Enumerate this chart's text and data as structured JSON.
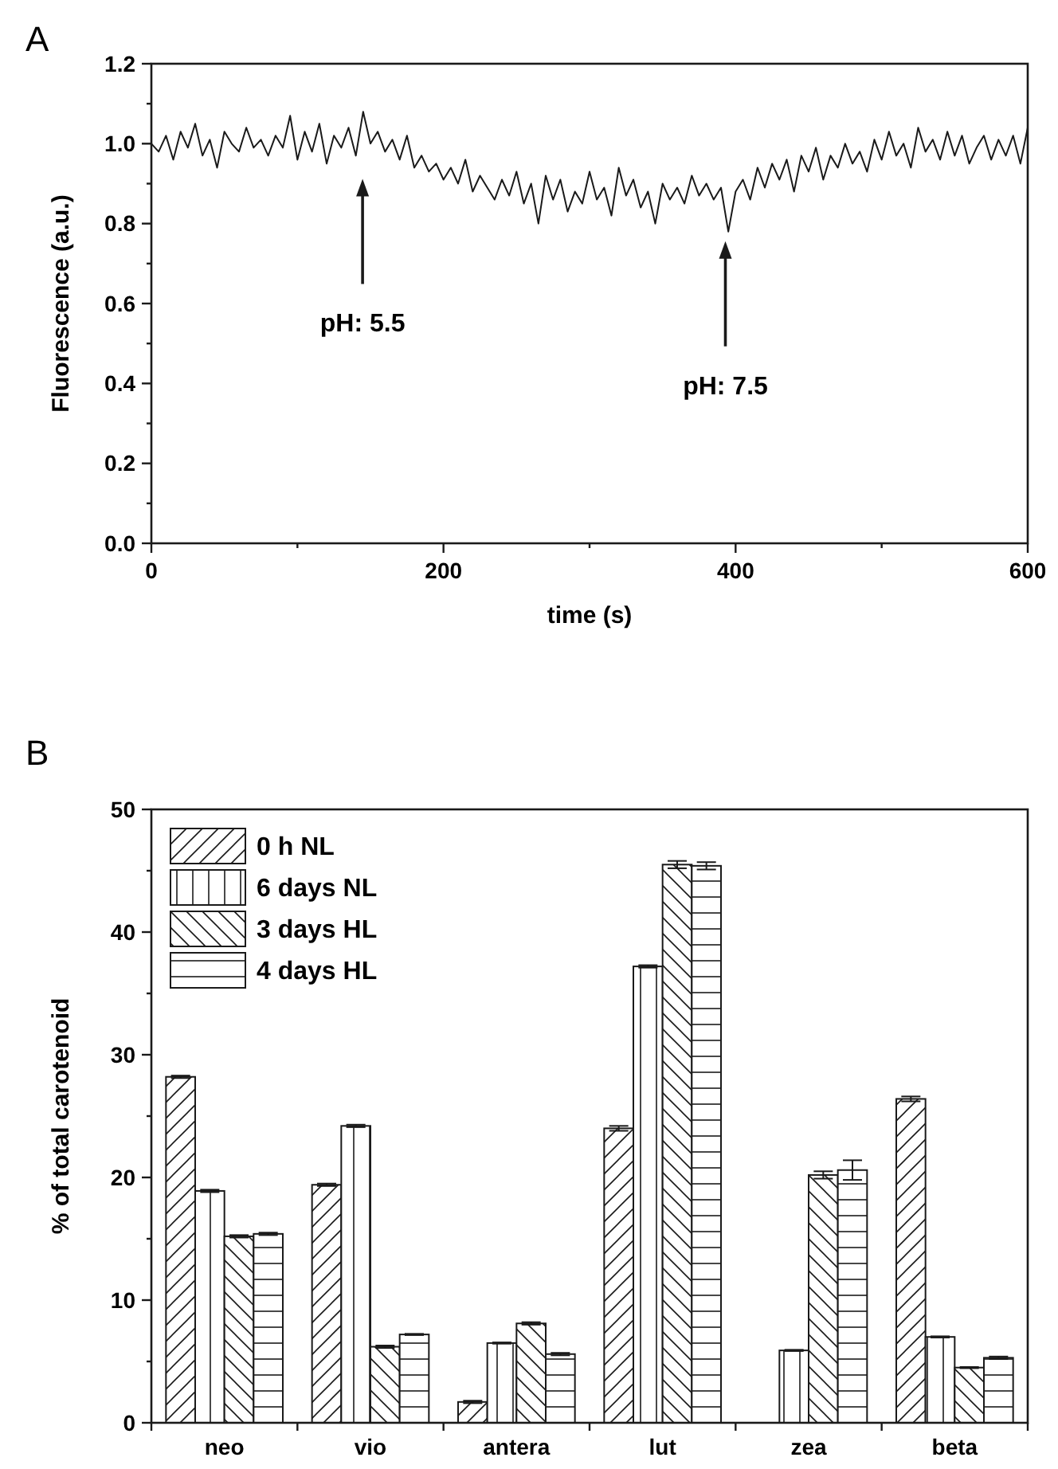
{
  "chart_data": [
    {
      "type": "line",
      "title": "A",
      "xlabel": "time (s)",
      "ylabel": "Fluorescence (a.u.)",
      "xlim": [
        0,
        600
      ],
      "ylim": [
        0,
        1.2
      ],
      "xticks": [
        0,
        {
          "value": 100,
          "label": null
        },
        200,
        {
          "value": 300,
          "label": null
        },
        400,
        {
          "value": 500,
          "label": null
        },
        600
      ],
      "yticks": [
        "0.0",
        {
          "value": 0.1,
          "label": null
        },
        {
          "value": 0.2,
          "label": "0.2"
        },
        {
          "value": 0.3,
          "label": null
        },
        {
          "value": 0.4,
          "label": "0.4"
        },
        {
          "value": 0.5,
          "label": null
        },
        {
          "value": 0.6,
          "label": "0.6"
        },
        {
          "value": 0.7,
          "label": null
        },
        {
          "value": 0.8,
          "label": "0.8"
        },
        {
          "value": 0.9,
          "label": null
        },
        {
          "value": 1.0,
          "label": "1.0"
        },
        {
          "value": 1.1,
          "label": null
        },
        {
          "value": 1.2,
          "label": "1.2"
        }
      ],
      "annotations": [
        "pH: 5.5",
        "pH: 7.5"
      ],
      "x": [
        0,
        5,
        10,
        15,
        20,
        25,
        30,
        35,
        40,
        45,
        50,
        55,
        60,
        65,
        70,
        75,
        80,
        85,
        90,
        95,
        100,
        105,
        110,
        115,
        120,
        125,
        130,
        135,
        140,
        145,
        150,
        155,
        160,
        165,
        170,
        175,
        180,
        185,
        190,
        195,
        200,
        205,
        210,
        215,
        220,
        225,
        230,
        235,
        240,
        245,
        250,
        255,
        260,
        265,
        270,
        275,
        280,
        285,
        290,
        295,
        300,
        305,
        310,
        315,
        320,
        325,
        330,
        335,
        340,
        345,
        350,
        355,
        360,
        365,
        370,
        375,
        380,
        385,
        390,
        395,
        400,
        405,
        410,
        415,
        420,
        425,
        430,
        435,
        440,
        445,
        450,
        455,
        460,
        465,
        470,
        475,
        480,
        485,
        490,
        495,
        500,
        505,
        510,
        515,
        520,
        525,
        530,
        535,
        540,
        545,
        550,
        555,
        560,
        565,
        570,
        575,
        580,
        585,
        590,
        595,
        600
      ],
      "series": [
        {
          "color": "#1a1a1a",
          "values": [
            1.0,
            0.98,
            1.02,
            0.96,
            1.03,
            0.99,
            1.05,
            0.97,
            1.01,
            0.94,
            1.03,
            1.0,
            0.98,
            1.04,
            0.99,
            1.01,
            0.97,
            1.02,
            0.99,
            1.07,
            0.96,
            1.03,
            0.98,
            1.05,
            0.95,
            1.02,
            0.99,
            1.04,
            0.97,
            1.08,
            1.0,
            1.03,
            0.98,
            1.01,
            0.96,
            1.02,
            0.94,
            0.97,
            0.93,
            0.95,
            0.91,
            0.94,
            0.9,
            0.96,
            0.88,
            0.92,
            0.89,
            0.86,
            0.91,
            0.87,
            0.93,
            0.85,
            0.9,
            0.8,
            0.92,
            0.86,
            0.91,
            0.83,
            0.88,
            0.85,
            0.93,
            0.86,
            0.89,
            0.82,
            0.94,
            0.87,
            0.91,
            0.84,
            0.88,
            0.8,
            0.9,
            0.86,
            0.89,
            0.85,
            0.92,
            0.87,
            0.9,
            0.86,
            0.89,
            0.78,
            0.88,
            0.91,
            0.86,
            0.94,
            0.89,
            0.95,
            0.91,
            0.96,
            0.88,
            0.97,
            0.93,
            0.99,
            0.91,
            0.97,
            0.94,
            1.0,
            0.95,
            0.98,
            0.93,
            1.01,
            0.96,
            1.03,
            0.97,
            1.0,
            0.94,
            1.04,
            0.98,
            1.01,
            0.96,
            1.03,
            0.97,
            1.02,
            0.95,
            0.99,
            1.02,
            0.96,
            1.01,
            0.97,
            1.02,
            0.95,
            1.04
          ]
        }
      ]
    },
    {
      "type": "bar",
      "title": "B",
      "ylabel": "% of total carotenoid",
      "legend": "top left",
      "categories": [
        "neo",
        "vio",
        "antera",
        "lut",
        "zea",
        "beta"
      ],
      "ylim": [
        0,
        50
      ],
      "yticks": [
        0,
        {
          "value": 5,
          "label": null
        },
        10,
        {
          "value": 15,
          "label": null
        },
        20,
        {
          "value": 25,
          "label": null
        },
        30,
        {
          "value": 35,
          "label": null
        },
        40,
        {
          "value": 45,
          "label": null
        },
        50
      ],
      "series": [
        {
          "name": "0 h NL",
          "color": "#1a1a1a",
          "values": [
            28.2,
            19.4,
            1.7,
            24.0,
            null,
            26.4
          ],
          "errors": [
            0.1,
            0.1,
            0.1,
            0.2,
            null,
            0.2
          ]
        },
        {
          "name": "6 days NL",
          "color": "#1a1a1a",
          "values": [
            18.9,
            24.2,
            6.5,
            37.2,
            5.9,
            7.0
          ],
          "errors": [
            0.1,
            0.1,
            0.05,
            0.1,
            0.05,
            0.05
          ]
        },
        {
          "name": "3 days HL",
          "color": "#1a1a1a",
          "values": [
            15.2,
            6.2,
            8.1,
            45.5,
            20.2,
            4.5
          ],
          "errors": [
            0.1,
            0.1,
            0.1,
            0.3,
            0.3,
            0.05
          ]
        },
        {
          "name": "4 days HL",
          "color": "#1a1a1a",
          "values": [
            15.4,
            7.2,
            5.6,
            45.4,
            20.6,
            5.3
          ],
          "errors": [
            0.1,
            0.05,
            0.1,
            0.3,
            0.8,
            0.1
          ]
        }
      ]
    }
  ]
}
